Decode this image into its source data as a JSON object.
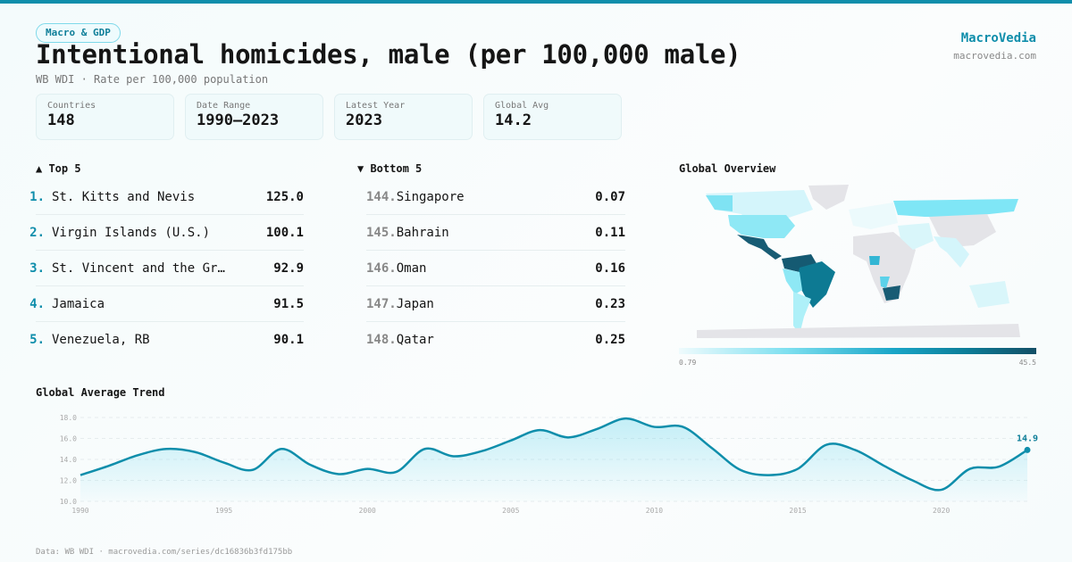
{
  "header": {
    "tag": "Macro & GDP",
    "title": "Intentional homicides, male (per 100,000 male)",
    "subtitle": "WB WDI · Rate per 100,000 population",
    "brand": "MacroVedia",
    "brand_url": "macrovedia.com"
  },
  "stats": [
    {
      "label": "Countries",
      "value": "148"
    },
    {
      "label": "Date Range",
      "value": "1990–2023"
    },
    {
      "label": "Latest Year",
      "value": "2023"
    },
    {
      "label": "Global Avg",
      "value": "14.2"
    }
  ],
  "top5": {
    "heading": "▲ Top 5",
    "items": [
      {
        "rank": "1.",
        "name": "St. Kitts and Nevis",
        "value": "125.0"
      },
      {
        "rank": "2.",
        "name": "Virgin Islands (U.S.)",
        "value": "100.1"
      },
      {
        "rank": "3.",
        "name": "St. Vincent and the Grenadines",
        "value": "92.9"
      },
      {
        "rank": "4.",
        "name": "Jamaica",
        "value": "91.5"
      },
      {
        "rank": "5.",
        "name": "Venezuela, RB",
        "value": "90.1"
      }
    ]
  },
  "bottom5": {
    "heading": "▼ Bottom 5",
    "items": [
      {
        "rank": "144.",
        "name": "Singapore",
        "value": "0.07"
      },
      {
        "rank": "145.",
        "name": "Bahrain",
        "value": "0.11"
      },
      {
        "rank": "146.",
        "name": "Oman",
        "value": "0.16"
      },
      {
        "rank": "147.",
        "name": "Japan",
        "value": "0.23"
      },
      {
        "rank": "148.",
        "name": "Qatar",
        "value": "0.25"
      }
    ]
  },
  "map": {
    "heading": "Global Overview",
    "legend_min": "0.79",
    "legend_max": "45.5",
    "colors": {
      "low": "#effbfd",
      "mid": "#1aa6c8",
      "high": "#134f66",
      "nodata": "#e4e4e8"
    }
  },
  "chart_data": {
    "type": "area",
    "title": "Global Average Trend",
    "x": [
      1990,
      1991,
      1992,
      1993,
      1994,
      1995,
      1996,
      1997,
      1998,
      1999,
      2000,
      2001,
      2002,
      2003,
      2004,
      2005,
      2006,
      2007,
      2008,
      2009,
      2010,
      2011,
      2012,
      2013,
      2014,
      2015,
      2016,
      2017,
      2018,
      2019,
      2020,
      2021,
      2022,
      2023
    ],
    "values": [
      12.5,
      13.4,
      14.4,
      15.0,
      14.7,
      13.7,
      13.0,
      15.0,
      13.5,
      12.6,
      13.1,
      12.8,
      15.0,
      14.3,
      14.8,
      15.8,
      16.8,
      16.1,
      16.9,
      17.9,
      17.1,
      17.1,
      15.1,
      13.0,
      12.5,
      13.1,
      15.4,
      14.9,
      13.4,
      12.0,
      11.1,
      13.1,
      13.3,
      14.9
    ],
    "ylim": [
      10,
      18
    ],
    "yticks": [
      "10.0",
      "12.0",
      "14.0",
      "16.0",
      "18.0"
    ],
    "xticks": [
      "1990",
      "1995",
      "2000",
      "2005",
      "2010",
      "2015",
      "2020"
    ],
    "last_label": "14.9",
    "color": "#0f8eab",
    "grid": true
  },
  "footer": "Data: WB WDI · macrovedia.com/series/dc16836b3fd175bb"
}
